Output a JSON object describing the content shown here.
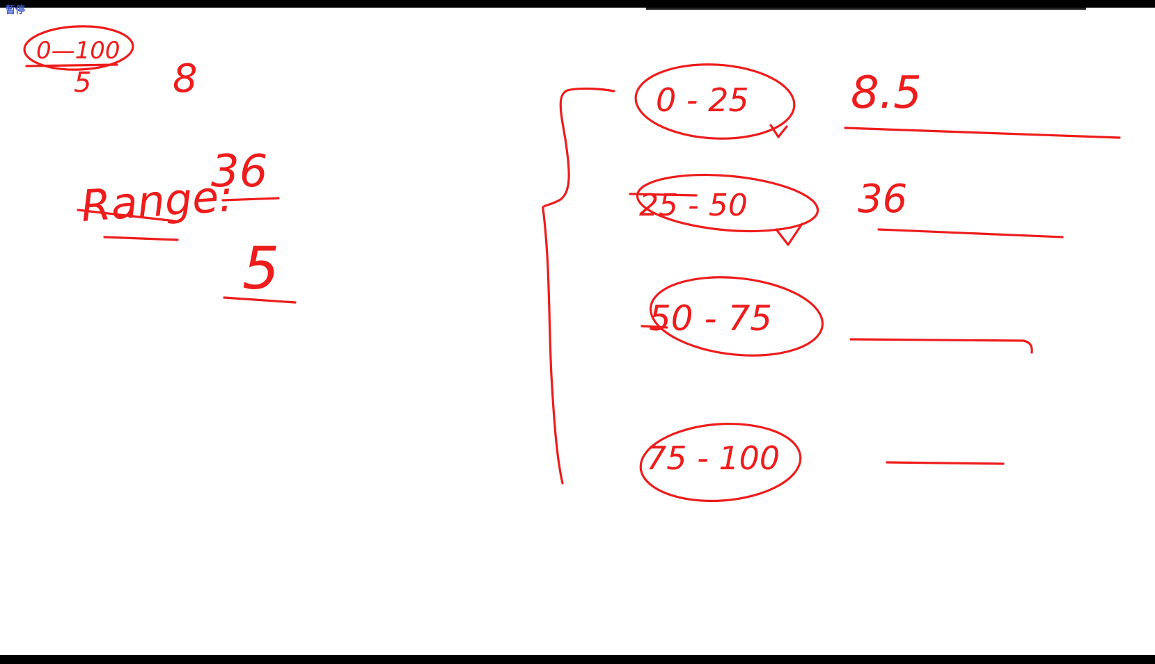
{
  "status": {
    "label": "暂停"
  },
  "ink_color": "#ee1c1c",
  "status_color": "#3a55c8",
  "notes": {
    "fraction_top": "0—100",
    "fraction_bottom": "5",
    "count": "8",
    "range_label": "Range:",
    "range_numerator": "36",
    "range_denominator": "5"
  },
  "intervals": [
    {
      "label": "0 - 25",
      "value": "8.5"
    },
    {
      "label": "25 - 50",
      "value": "36"
    },
    {
      "label": "50 - 75",
      "value": ""
    },
    {
      "label": "75 - 100",
      "value": ""
    }
  ]
}
